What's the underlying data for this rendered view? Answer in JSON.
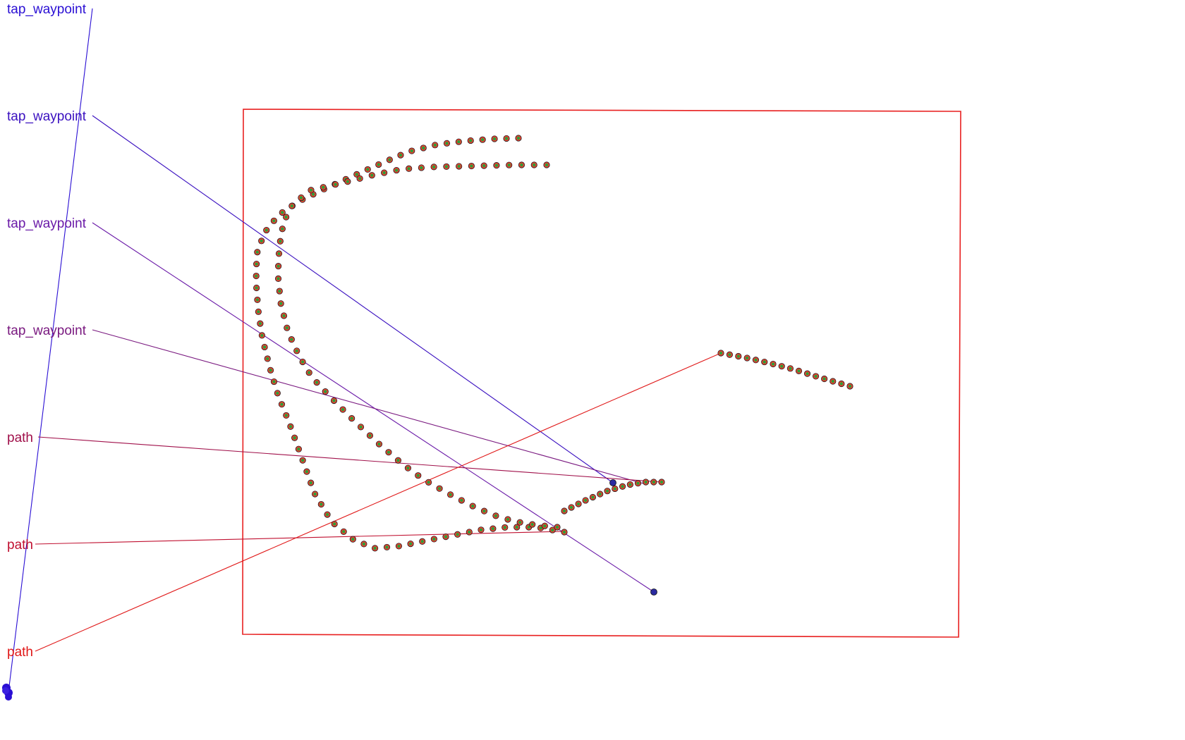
{
  "annotations": [
    {
      "label": "tap_waypoint",
      "color": "#2a0fd4"
    },
    {
      "label": "tap_waypoint",
      "color": "#3a10c0"
    },
    {
      "label": "tap_waypoint",
      "color": "#6a1aa8"
    },
    {
      "label": "tap_waypoint",
      "color": "#7a1a80"
    },
    {
      "label": "path",
      "color": "#a0104a"
    },
    {
      "label": "path",
      "color": "#c01030"
    },
    {
      "label": "path",
      "color": "#e01818"
    }
  ],
  "colors": {
    "frame": "#e82020",
    "dot_fill": "#2e9e3a",
    "dot_ring": "#e84030",
    "dot_outline": "#222222",
    "waypoint_fill": "#2a2aa0"
  },
  "icons": [
    "waypoint-marker-icon",
    "path-point-icon",
    "cursor-cluster-icon"
  ]
}
